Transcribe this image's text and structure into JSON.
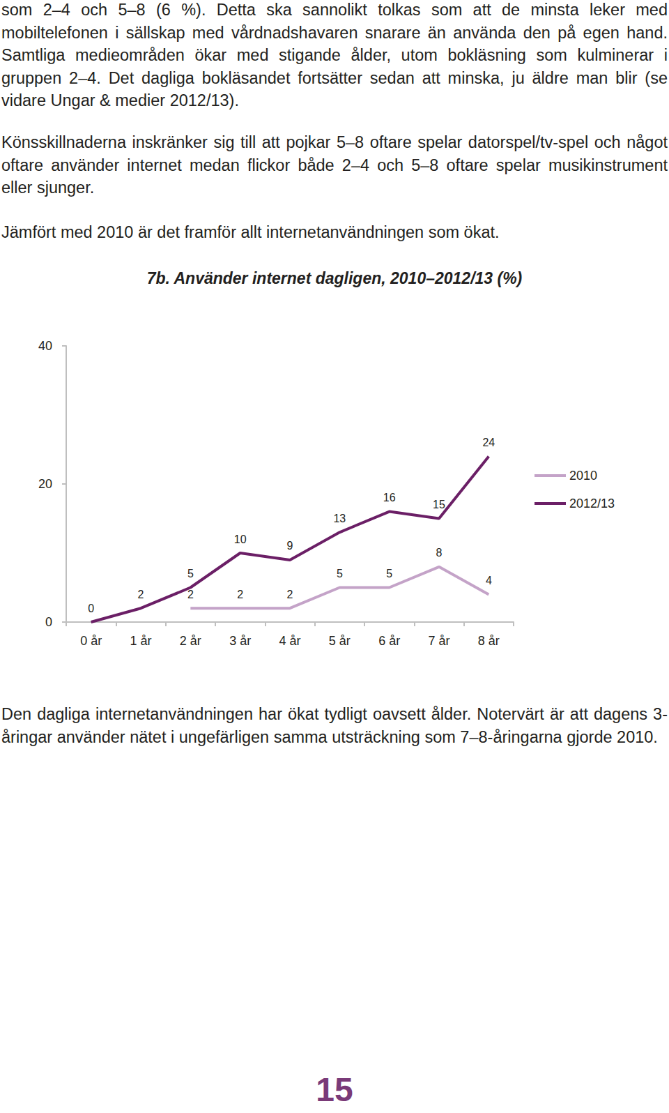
{
  "text_above": [
    "som 2–4 och 5–8 (6 %). Detta ska sannolikt tolkas som att de minsta leker med mobiltelefonen i sällskap med vårdnadshavaren snarare än använda den på egen hand. Samtliga medieområden ökar med stigande ålder, utom bokläsning som kulminerar i gruppen 2–4. Det dagliga bokläsandet fortsätter sedan att minska, ju äldre man blir (se vidare Ungar & medier 2012/13).",
    "Könsskillnaderna inskränker sig till att pojkar 5–8 oftare spelar datorspel/tv-spel och något oftare använder internet medan flickor både 2–4 och 5–8 oftare spelar musikinstrument eller sjunger.",
    "Jämfört med 2010 är det framför allt internetanvändningen som ökat."
  ],
  "chart_data": {
    "type": "line",
    "title": "7b. Använder internet dagligen, 2010–2012/13 (%)",
    "categories": [
      "0 år",
      "1 år",
      "2 år",
      "3 år",
      "4 år",
      "5 år",
      "6 år",
      "7 år",
      "8 år"
    ],
    "series": [
      {
        "name": "2010",
        "color": "#c4a3c8",
        "values": [
          null,
          null,
          2,
          2,
          2,
          5,
          5,
          8,
          4
        ]
      },
      {
        "name": "2012/13",
        "color": "#6b1f66",
        "values": [
          0,
          2,
          5,
          10,
          9,
          13,
          16,
          15,
          24
        ]
      }
    ],
    "ylim": [
      0,
      40
    ],
    "yticks": [
      0,
      20,
      40
    ],
    "grid": false,
    "legend": "right",
    "data_labels": true
  },
  "text_below": "Den dagliga internetanvändningen har ökat tydligt oavsett ålder. Notervärt är att dagens 3-åringar använder nätet i ungefärligen samma utsträckning som 7–8-åringarna gjorde 2010.",
  "page_number": "15"
}
